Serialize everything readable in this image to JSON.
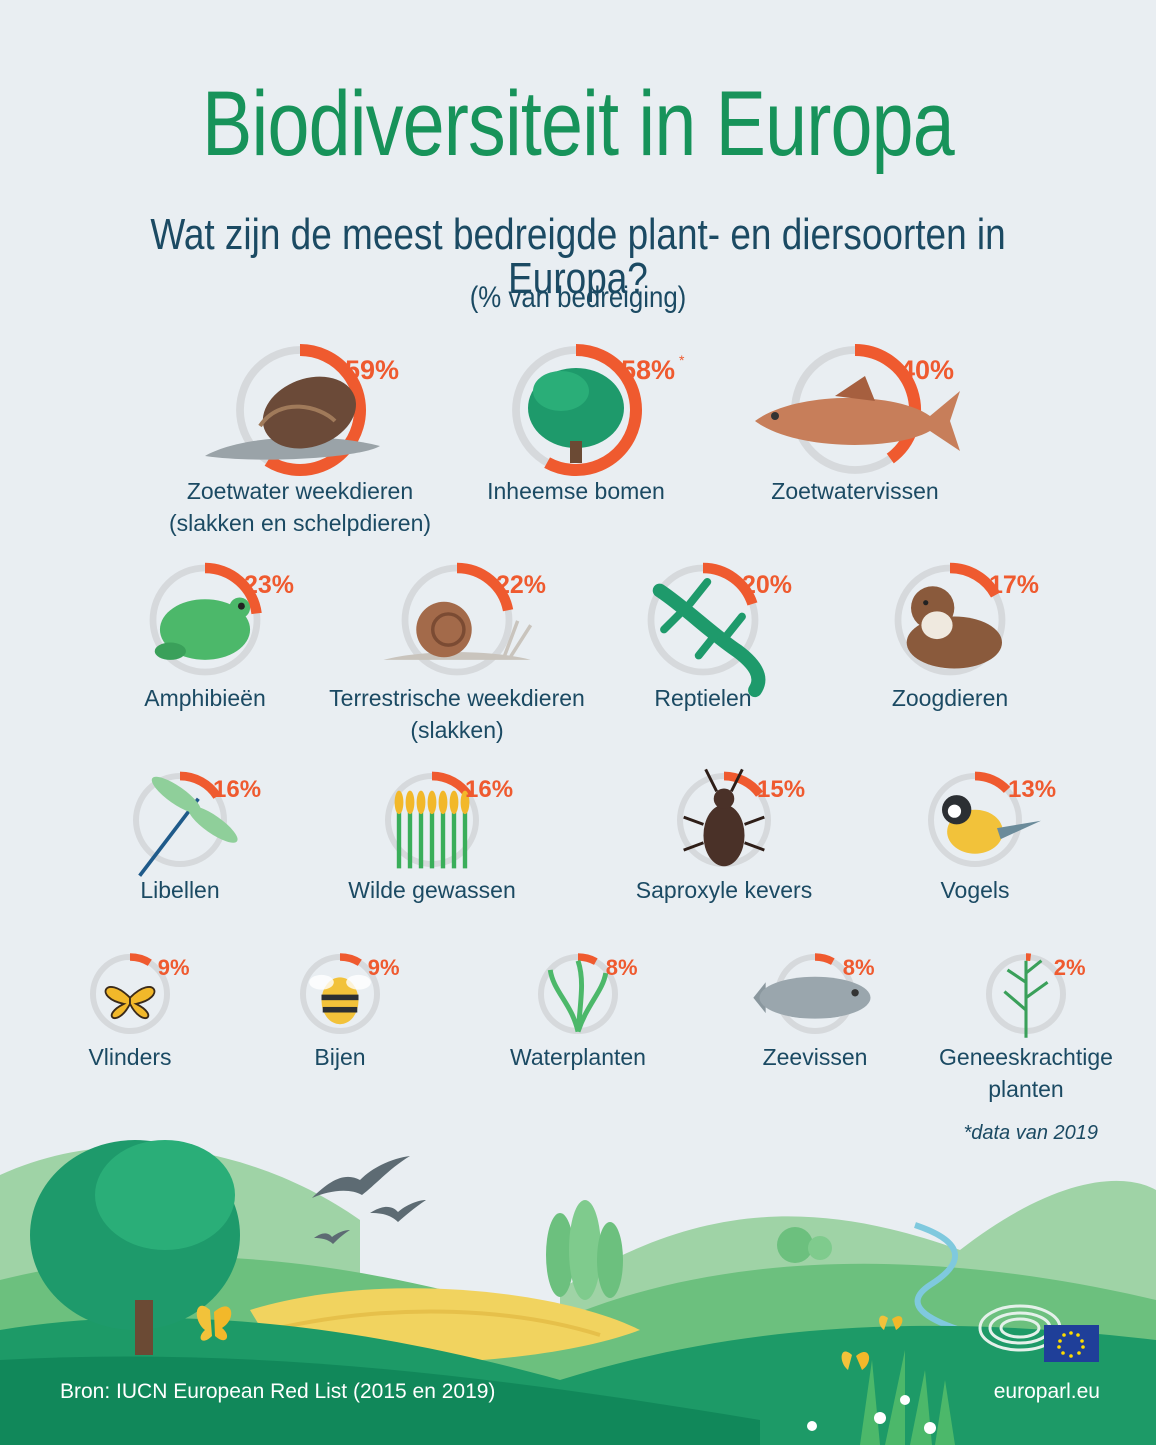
{
  "title": "Biodiversiteit in Europa",
  "subtitle": "Wat zijn de meest bedreigde plant- en diersoorten in Europa?",
  "unit_label": "(% van bedreiging)",
  "chart_data": {
    "type": "donut-gauge",
    "unit": "%",
    "items": [
      {
        "label": "Zoetwater weekdieren",
        "label2": "(slakken en schelpdieren)",
        "value": 59,
        "display": "59%",
        "icon": "water-snail-icon"
      },
      {
        "label": "Inheemse bomen",
        "label2": "",
        "value": 58,
        "display": "58%",
        "note_mark": "*",
        "icon": "tree-icon"
      },
      {
        "label": "Zoetwatervissen",
        "label2": "",
        "value": 40,
        "display": "40%",
        "icon": "freshwater-fish-icon"
      },
      {
        "label": "Amphibieën",
        "label2": "",
        "value": 23,
        "display": "23%",
        "icon": "frog-icon"
      },
      {
        "label": "Terrestrische weekdieren",
        "label2": "(slakken)",
        "value": 22,
        "display": "22%",
        "icon": "land-snail-icon"
      },
      {
        "label": "Reptielen",
        "label2": "",
        "value": 20,
        "display": "20%",
        "icon": "lizard-icon"
      },
      {
        "label": "Zoogdieren",
        "label2": "",
        "value": 17,
        "display": "17%",
        "icon": "otter-icon"
      },
      {
        "label": "Libellen",
        "label2": "",
        "value": 16,
        "display": "16%",
        "icon": "dragonfly-icon"
      },
      {
        "label": "Wilde gewassen",
        "label2": "",
        "value": 16,
        "display": "16%",
        "icon": "wild-crops-icon"
      },
      {
        "label": "Saproxyle kevers",
        "label2": "",
        "value": 15,
        "display": "15%",
        "icon": "beetle-icon"
      },
      {
        "label": "Vogels",
        "label2": "",
        "value": 13,
        "display": "13%",
        "icon": "bird-icon"
      },
      {
        "label": "Vlinders",
        "label2": "",
        "value": 9,
        "display": "9%",
        "icon": "butterfly-icon"
      },
      {
        "label": "Bijen",
        "label2": "",
        "value": 9,
        "display": "9%",
        "icon": "bee-icon"
      },
      {
        "label": "Waterplanten",
        "label2": "",
        "value": 8,
        "display": "8%",
        "icon": "water-plant-icon"
      },
      {
        "label": "Zeevissen",
        "label2": "",
        "value": 8,
        "display": "8%",
        "icon": "sea-fish-icon"
      },
      {
        "label": "Geneeskrachtige",
        "label2": "planten",
        "value": 2,
        "display": "2%",
        "icon": "medicinal-plant-icon"
      }
    ]
  },
  "footnote": "*data van 2019",
  "source": "Bron: IUCN European Red List (2015 en 2019)",
  "website": "europarl.eu",
  "colors": {
    "accent": "#ef5a2f",
    "ring": "#d6d9dc",
    "title": "#17935a",
    "text": "#1b4a63"
  }
}
